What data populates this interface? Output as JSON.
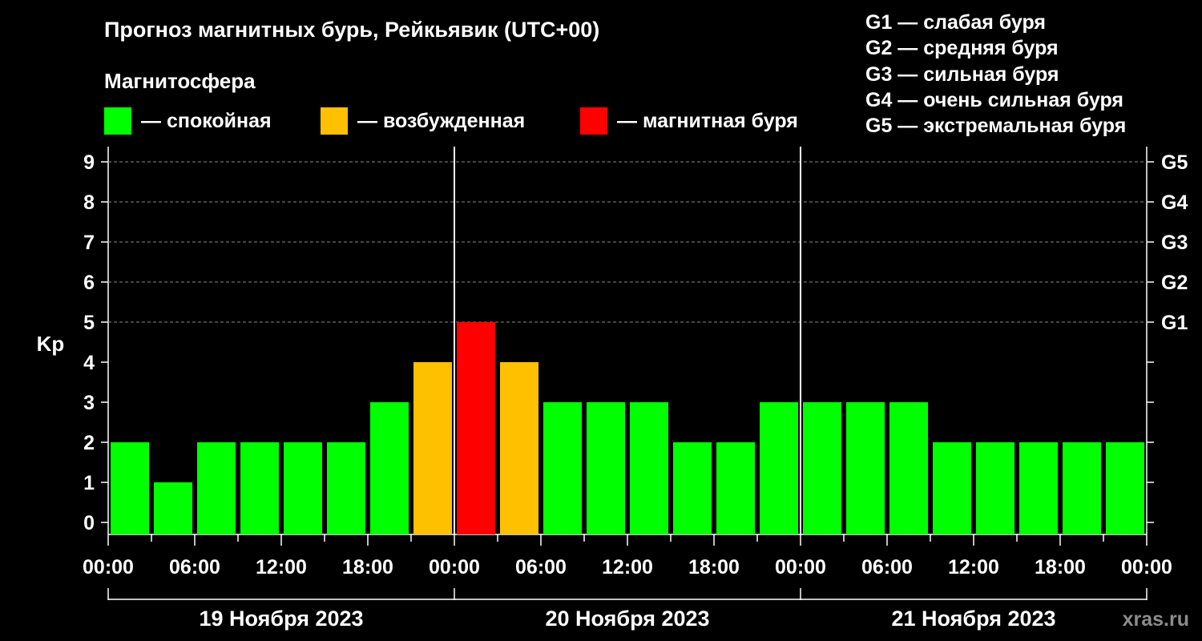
{
  "title": "Прогноз магнитных бурь, Рейкьявик (UTC+00)",
  "legend": {
    "heading": "Магнитосфера",
    "items": [
      {
        "label": "— спокойная",
        "color": "#00ff00"
      },
      {
        "label": "— возбужденная",
        "color": "#ffc000"
      },
      {
        "label": "— магнитная буря",
        "color": "#ff0000"
      }
    ]
  },
  "g_scale": [
    "G1 — слабая буря",
    "G2 — средняя буря",
    "G3 — сильная буря",
    "G4 — очень сильная буря",
    "G5 — экстремальная буря"
  ],
  "watermark": "xras.ru",
  "chart_data": {
    "type": "bar",
    "ylabel": "Kp",
    "ylim": [
      0,
      9
    ],
    "y_ticks": [
      0,
      1,
      2,
      3,
      4,
      5,
      6,
      7,
      8,
      9
    ],
    "right_axis_labels": [
      {
        "kp": 5,
        "label": "G1"
      },
      {
        "kp": 6,
        "label": "G2"
      },
      {
        "kp": 7,
        "label": "G3"
      },
      {
        "kp": 8,
        "label": "G4"
      },
      {
        "kp": 9,
        "label": "G5"
      }
    ],
    "x_tick_labels": [
      "00:00",
      "06:00",
      "12:00",
      "18:00",
      "00:00",
      "06:00",
      "12:00",
      "18:00",
      "00:00",
      "06:00",
      "12:00",
      "18:00",
      "00:00"
    ],
    "interval_hours": 3,
    "days": [
      "19 Ноября 2023",
      "20 Ноября 2023",
      "21 Ноября 2023"
    ],
    "values": [
      2,
      1,
      2,
      2,
      2,
      2,
      3,
      4,
      5,
      4,
      3,
      3,
      3,
      2,
      2,
      3,
      3,
      3,
      3,
      2,
      2,
      2,
      2,
      2
    ],
    "level_colors": {
      "quiet": "#00ff00",
      "active": "#ffc000",
      "storm": "#ff0000"
    },
    "grid": true
  }
}
